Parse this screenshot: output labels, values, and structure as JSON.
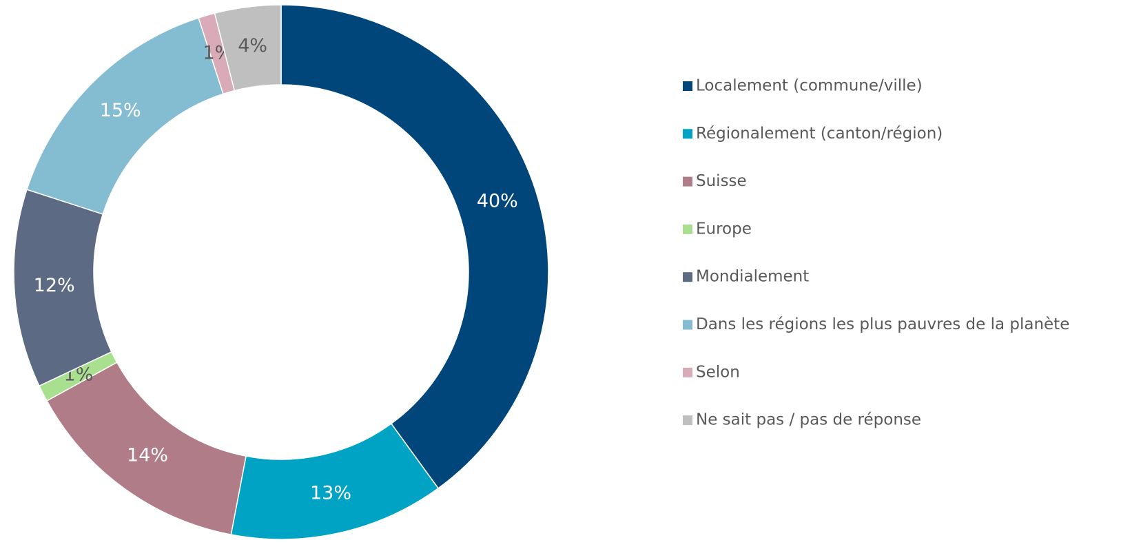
{
  "chart_data": {
    "type": "donut",
    "categories": [
      "Localement (commune/ville)",
      "Régionalement (canton/région)",
      "Suisse",
      "Europe",
      "Mondialement",
      "Dans les régions les plus pauvres de la planète",
      "Selon",
      "Ne sait pas / pas de réponse"
    ],
    "values": [
      40,
      13,
      14,
      1,
      12,
      15,
      1,
      4
    ],
    "value_labels": [
      "40%",
      "13%",
      "14%",
      "1%",
      "12%",
      "15%",
      "1%",
      "4%"
    ],
    "colors": [
      "#00467a",
      "#00a3c4",
      "#b07c88",
      "#a8e08f",
      "#5d6a83",
      "#84bcd2",
      "#d9aab8",
      "#bfbfbf"
    ],
    "label_colors": [
      "#ffffff",
      "#ffffff",
      "#ffffff",
      "#595959",
      "#ffffff",
      "#ffffff",
      "#595959",
      "#595959"
    ],
    "legend": "right"
  }
}
